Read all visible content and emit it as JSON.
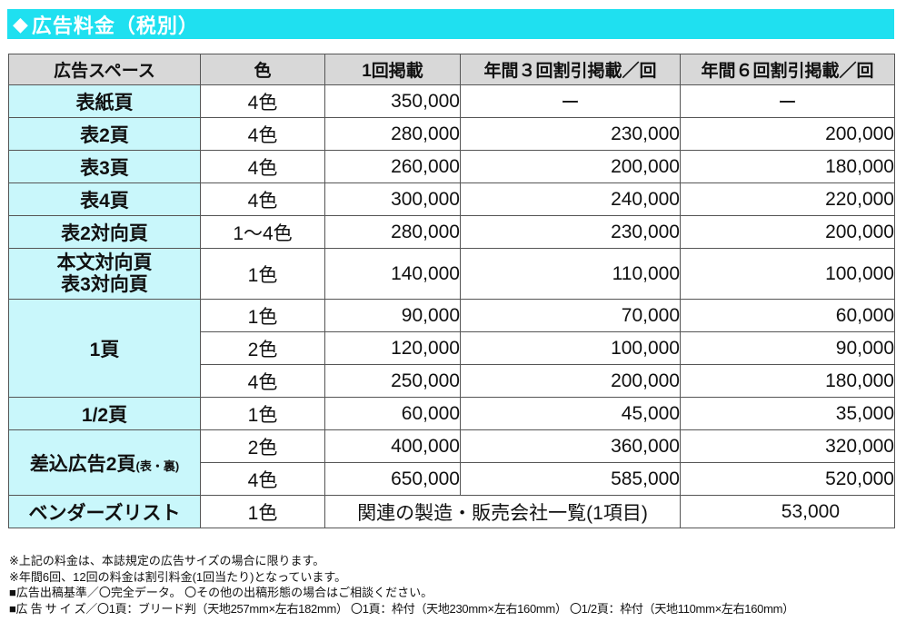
{
  "header": {
    "diamond": "◆",
    "title": "広告料金（税別）"
  },
  "table": {
    "headers": [
      "広告スペース",
      "色",
      "1回掲載",
      "年間３回割引掲載／回",
      "年間６回割引掲載／回"
    ],
    "rows": [
      {
        "space": "表紙頁",
        "color": "4色",
        "single": "350,000",
        "three": "ー",
        "six": "ー"
      },
      {
        "space": "表2頁",
        "color": "4色",
        "single": "280,000",
        "three": "230,000",
        "six": "200,000"
      },
      {
        "space": "表3頁",
        "color": "4色",
        "single": "260,000",
        "three": "200,000",
        "six": "180,000"
      },
      {
        "space": "表4頁",
        "color": "4色",
        "single": "300,000",
        "three": "240,000",
        "six": "220,000"
      },
      {
        "space": "表2対向頁",
        "color": "1～4色",
        "single": "280,000",
        "three": "230,000",
        "six": "200,000"
      },
      {
        "space_line1": "本文対向頁",
        "space_line2": "表3対向頁",
        "color": "1色",
        "single": "140,000",
        "three": "110,000",
        "six": "100,000"
      }
    ],
    "page_full": {
      "space": "1頁",
      "rows": [
        {
          "color": "1色",
          "single": "90,000",
          "three": "70,000",
          "six": "60,000"
        },
        {
          "color": "2色",
          "single": "120,000",
          "three": "100,000",
          "six": "90,000"
        },
        {
          "color": "4色",
          "single": "250,000",
          "three": "200,000",
          "six": "180,000"
        }
      ]
    },
    "page_half": {
      "space": "1/2頁",
      "color": "1色",
      "single": "60,000",
      "three": "45,000",
      "six": "35,000"
    },
    "insert": {
      "space": "差込広告2頁",
      "space_note": "(表・裏)",
      "rows": [
        {
          "color": "2色",
          "single": "400,000",
          "three": "360,000",
          "six": "320,000"
        },
        {
          "color": "4色",
          "single": "650,000",
          "three": "585,000",
          "six": "520,000"
        }
      ]
    },
    "vendor": {
      "space": "ベンダーズリスト",
      "color": "1色",
      "desc": "関連の製造・販売会社一覧(1項目)",
      "price": "53,000"
    }
  },
  "notes": [
    "※上記の料金は、本誌規定の広告サイズの場合に限ります。",
    "※年間6回、12回の料金は割引料金(1回当たり)となっています。",
    "■広告出稿基準／〇完全データ。 〇その他の出稿形態の場合はご相談ください。",
    "■広 告 サ イ ズ／〇1頁：ブリード判（天地257mm×左右182mm） 〇1頁：枠付（天地230mm×左右160mm） 〇1/2頁：枠付（天地110mm×左右160mm）"
  ]
}
